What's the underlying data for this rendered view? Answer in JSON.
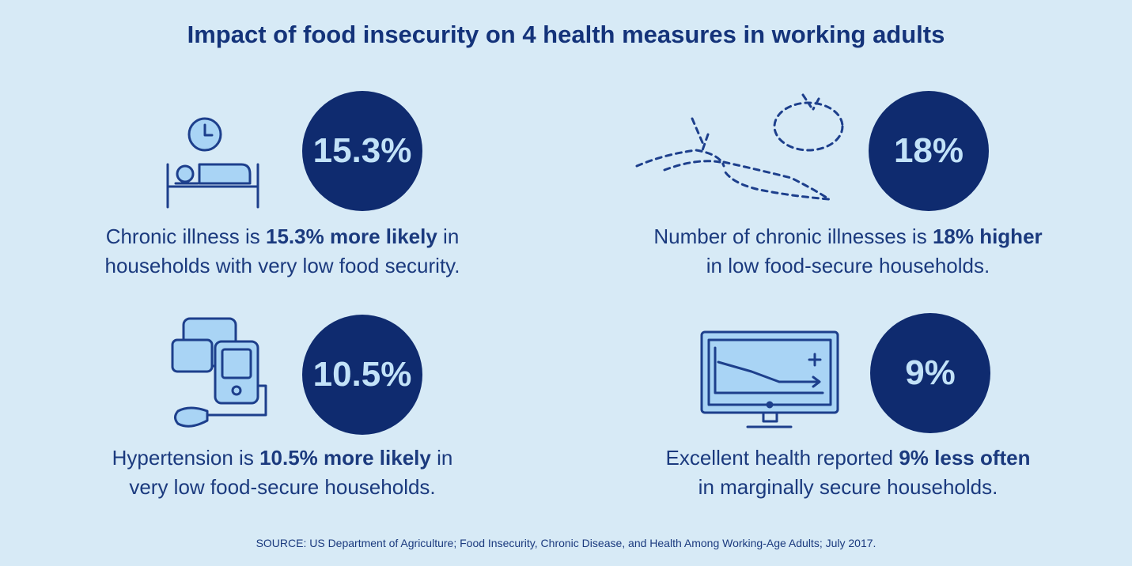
{
  "header": {
    "title": "Impact of food insecurity on 4 health measures in working adults"
  },
  "panels": [
    {
      "stat": "15.3%",
      "description": [
        [
          "Chronic illness is",
          {
            "strong": "15.3% more likely"
          },
          "in"
        ],
        [
          "households with very low food security."
        ]
      ]
    },
    {
      "stat": "18%",
      "description": [
        [
          "Number of chronic illnesses is",
          {
            "strong": "18% higher"
          }
        ],
        [
          "in low food-secure households."
        ]
      ]
    },
    {
      "stat": "10.5%",
      "description": [
        [
          "Hypertension is",
          {
            "strong": "10.5% more likely"
          },
          "in"
        ],
        [
          "very low food-secure households."
        ]
      ]
    },
    {
      "stat": "9%",
      "description": [
        [
          "Excellent health reported",
          {
            "strong": "9% less often"
          }
        ],
        [
          "in marginally secure households."
        ]
      ]
    }
  ],
  "footer": {
    "source": "SOURCE: US Department of Agriculture; Food Insecurity, Chronic Disease, and Health Among Working-Age Adults; July 2017."
  }
}
